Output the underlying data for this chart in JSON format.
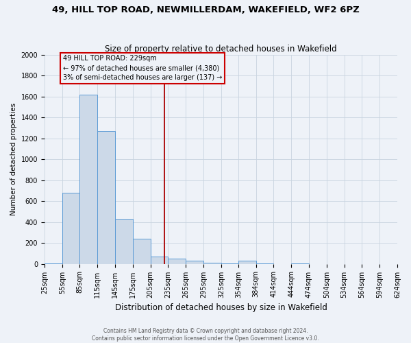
{
  "title": "49, HILL TOP ROAD, NEWMILLERDAM, WAKEFIELD, WF2 6PZ",
  "subtitle": "Size of property relative to detached houses in Wakefield",
  "xlabel": "Distribution of detached houses by size in Wakefield",
  "ylabel": "Number of detached properties",
  "footer_line1": "Contains HM Land Registry data © Crown copyright and database right 2024.",
  "footer_line2": "Contains public sector information licensed under the Open Government Licence v3.0.",
  "bar_color": "#ccd9e8",
  "bar_edge_color": "#5b9bd5",
  "grid_color": "#c8d4e0",
  "bg_color": "#eef2f8",
  "annotation_text": "49 HILL TOP ROAD: 229sqm\n← 97% of detached houses are smaller (4,380)\n3% of semi-detached houses are larger (137) →",
  "annotation_box_color": "#cc0000",
  "vline_color": "#aa0000",
  "property_size": 229,
  "bins": [
    25,
    55,
    85,
    115,
    145,
    175,
    205,
    235,
    265,
    295,
    325,
    354,
    384,
    414,
    444,
    474,
    504,
    534,
    564,
    594,
    624
  ],
  "bin_labels": [
    "25sqm",
    "55sqm",
    "85sqm",
    "115sqm",
    "145sqm",
    "175sqm",
    "205sqm",
    "235sqm",
    "265sqm",
    "295sqm",
    "325sqm",
    "354sqm",
    "384sqm",
    "414sqm",
    "444sqm",
    "474sqm",
    "504sqm",
    "534sqm",
    "564sqm",
    "594sqm",
    "624sqm"
  ],
  "counts": [
    5,
    680,
    1620,
    1270,
    430,
    240,
    70,
    50,
    30,
    10,
    5,
    30,
    5,
    0,
    5,
    0,
    0,
    0,
    0,
    0
  ],
  "ylim": [
    0,
    2000
  ],
  "yticks": [
    0,
    200,
    400,
    600,
    800,
    1000,
    1200,
    1400,
    1600,
    1800,
    2000
  ],
  "title_fontsize": 9.5,
  "subtitle_fontsize": 8.5,
  "xlabel_fontsize": 8.5,
  "ylabel_fontsize": 7.5,
  "tick_fontsize": 7,
  "annotation_fontsize": 7,
  "footer_fontsize": 5.5
}
